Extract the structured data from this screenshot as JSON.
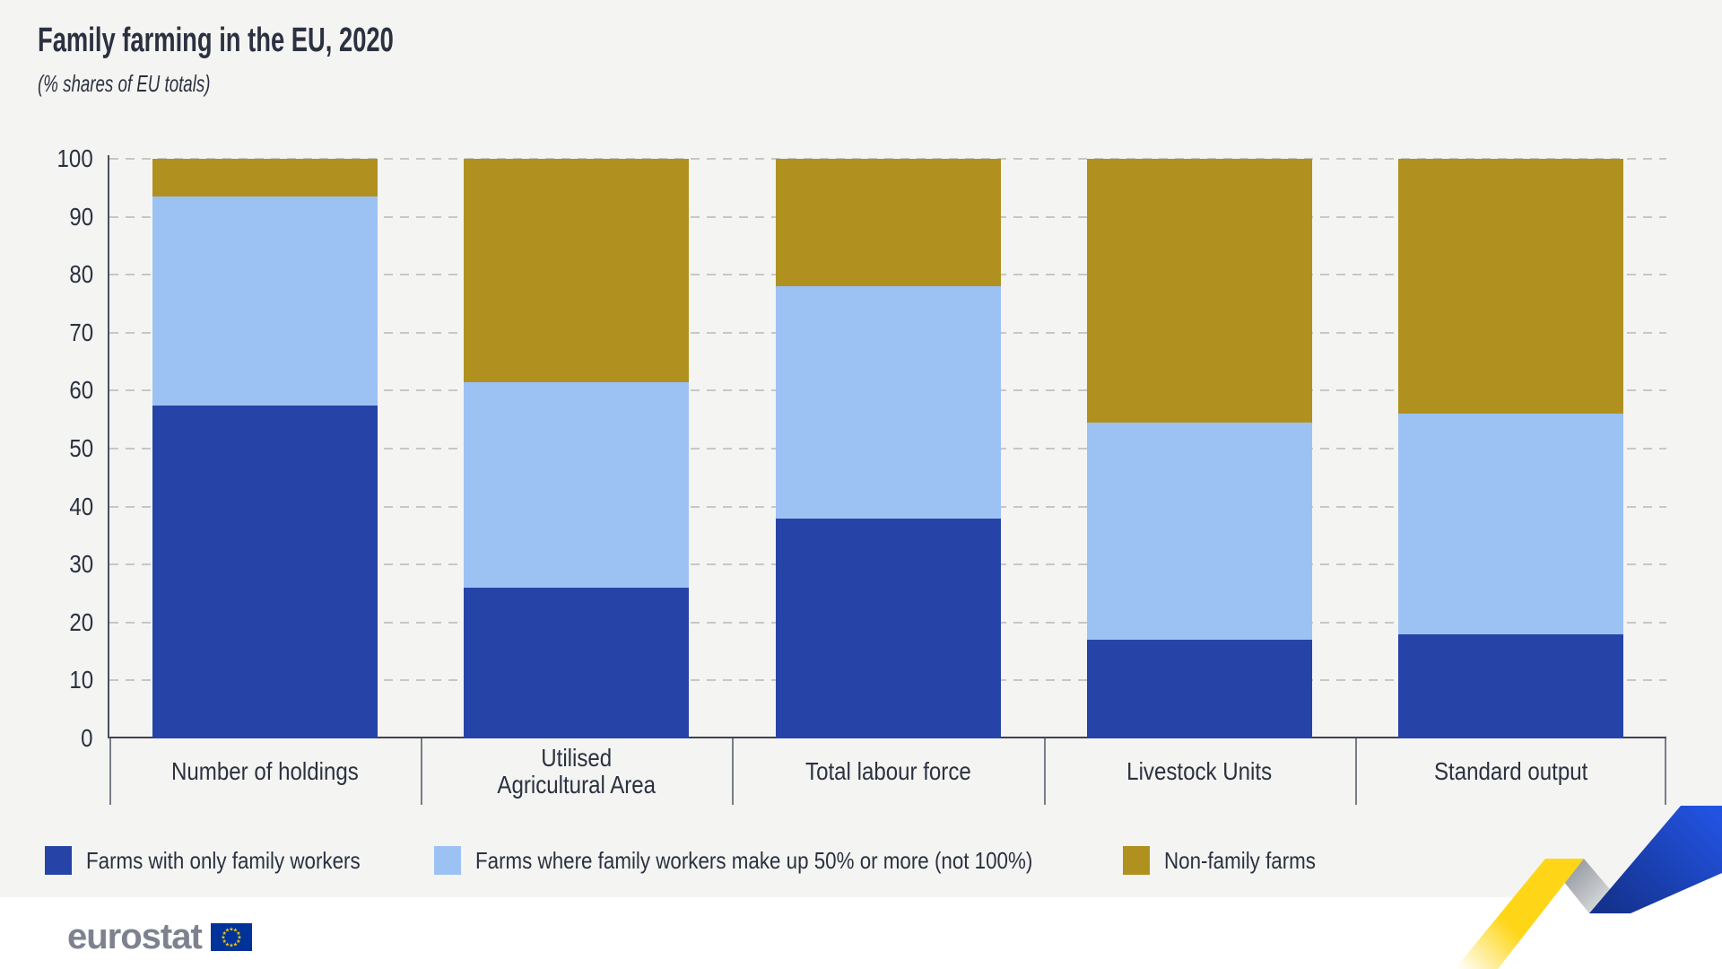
{
  "title": "Family farming in the EU, 2020",
  "subtitle": "(% shares of EU totals)",
  "chart_data": {
    "type": "bar",
    "stacked": true,
    "title": "Family farming in the EU, 2020",
    "subtitle": "(% shares of EU totals)",
    "categories": [
      "Number of holdings",
      "Utilised\nAgricultural Area",
      "Total labour force",
      "Livestock Units",
      "Standard output"
    ],
    "series": [
      {
        "name": "Farms with only family workers",
        "color": "#2644A7",
        "values": [
          57.5,
          26,
          38,
          17,
          18
        ]
      },
      {
        "name": "Farms where family workers make up 50% or more (not 100%)",
        "color": "#9CC2F4",
        "values": [
          36,
          35.5,
          40,
          37.5,
          38
        ]
      },
      {
        "name": "Non-family farms",
        "color": "#B09120",
        "values": [
          6.5,
          38.5,
          22,
          45.5,
          44
        ]
      }
    ],
    "xlabel": "",
    "ylabel": "",
    "ylim": [
      0,
      100
    ],
    "yticks": [
      0,
      10,
      20,
      30,
      40,
      50,
      60,
      70,
      80,
      90,
      100
    ],
    "grid": "horizontal-dashed",
    "legend_position": "bottom"
  },
  "footer": {
    "logo_text": "eurostat"
  },
  "colors": {
    "panel_background": "#F4F4F2",
    "text": "#2B3140",
    "axis_line": "#4A4E5E",
    "baseline": "#3F4453",
    "gridline": "#C7C7C5",
    "separator": "#787D8A",
    "logo_gray": "#7E828E",
    "flag_blue": "#003399",
    "flag_star_yellow": "#FFCC00",
    "ribbon_yellow": "#FFD617",
    "ribbon_gray": "#8B929C",
    "ribbon_blue": "#1D4FD0"
  }
}
